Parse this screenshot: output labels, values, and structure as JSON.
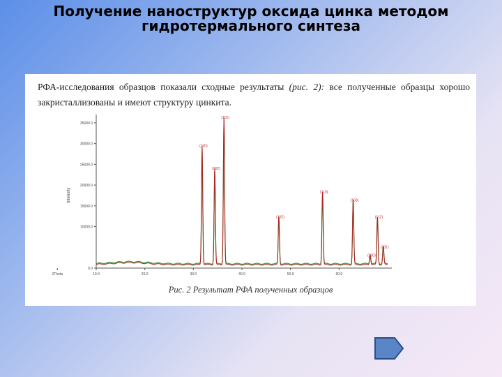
{
  "slide": {
    "title_line1": "Получение наноструктур оксида цинка методом",
    "title_line2": "гидротермального синтеза"
  },
  "paper": {
    "text_before_ref": "РФА-исследования образцов показали сходные результаты ",
    "ref": "(рис. 2):",
    "text_after_ref": " все полученные образцы хорошо закристаллизованы и имеют структуру цинкита.",
    "caption": "Рис. 2 Результат РФА полученных образцов"
  },
  "nav": {
    "next_icon": "arrow-right-icon"
  },
  "chart_data": {
    "type": "line",
    "ylabel": "Intensity",
    "x_ticks": [
      "10.0",
      "20.0",
      "30.0",
      "40.0",
      "50.0",
      "60.0",
      "2Theta"
    ],
    "y_ticks": [
      "0.0",
      "10000.0",
      "15000.0",
      "20000.0",
      "25000.0",
      "30000.0",
      "35000.0"
    ],
    "xlim": [
      10,
      70
    ],
    "ylim": [
      0,
      36000
    ],
    "colors": {
      "pattern_a": "#2e9b3a",
      "pattern_b": "#b02020",
      "label": "#cc2222",
      "axis": "#555555"
    },
    "peaks": [
      {
        "x": 31.8,
        "y": 28700,
        "label": "(100)"
      },
      {
        "x": 34.4,
        "y": 23200,
        "label": "(002)"
      },
      {
        "x": 36.3,
        "y": 35500,
        "label": "(101)"
      },
      {
        "x": 47.6,
        "y": 11500,
        "label": "(102)"
      },
      {
        "x": 56.6,
        "y": 17600,
        "label": "(110)"
      },
      {
        "x": 62.9,
        "y": 15600,
        "label": "(103)"
      },
      {
        "x": 66.4,
        "y": 2300,
        "label": "(200)"
      },
      {
        "x": 67.9,
        "y": 11500,
        "label": "(112)"
      },
      {
        "x": 69.1,
        "y": 4300,
        "label": "(201)"
      }
    ]
  }
}
